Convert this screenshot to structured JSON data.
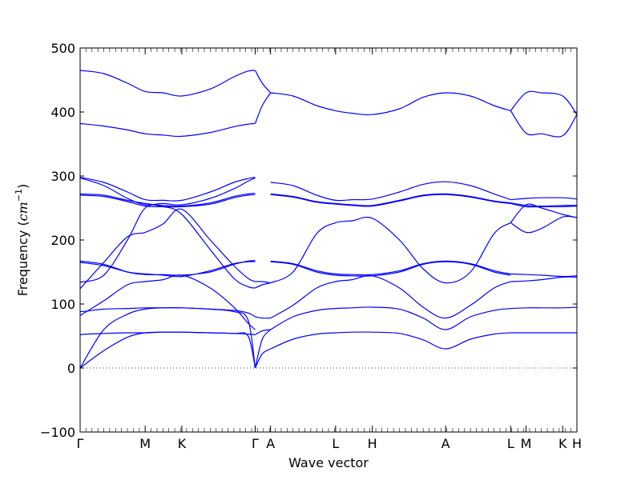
{
  "chart_data": {
    "type": "line",
    "xlabel": "Wave vector",
    "ylabel": "Frequency ($cm^{-1}$)",
    "ylabel_parts": {
      "main": "Frequency (",
      "var": "cm",
      "exp": "−1",
      "close": ")"
    },
    "ylim": [
      -100,
      500
    ],
    "yticks": [
      -100,
      0,
      100,
      200,
      300,
      400,
      500
    ],
    "xlim": [
      0,
      21
    ],
    "xticks": [
      {
        "pos": 0,
        "label": "Γ"
      },
      {
        "pos": 2.75,
        "label": "M"
      },
      {
        "pos": 4.3,
        "label": "K"
      },
      {
        "pos": 7.4,
        "label": "Γ"
      },
      {
        "pos": 8.05,
        "label": "A"
      },
      {
        "pos": 10.8,
        "label": "L"
      },
      {
        "pos": 12.35,
        "label": "H"
      },
      {
        "pos": 15.45,
        "label": "A"
      },
      {
        "pos": 18.2,
        "label": "L"
      },
      {
        "pos": 18.85,
        "label": "M"
      },
      {
        "pos": 20.4,
        "label": "K"
      },
      {
        "pos": 21,
        "label": "H"
      }
    ],
    "zero_line": {
      "value": 0,
      "style": "dotted"
    },
    "grid": false,
    "series": [
      {
        "x": [
          0,
          1,
          2,
          2.75,
          3.5,
          4.3,
          5.5,
          6.5,
          7.1,
          7.4
        ],
        "y": [
          0,
          27,
          48,
          55,
          56,
          56,
          55,
          54,
          50,
          0
        ]
      },
      {
        "x": [
          0,
          1,
          2,
          2.75,
          3.5,
          4.3,
          5.5,
          6.5,
          7.1,
          7.4
        ],
        "y": [
          0,
          60,
          84,
          92,
          94,
          94,
          92,
          88,
          75,
          0
        ]
      },
      {
        "x": [
          0,
          0.3,
          1,
          2,
          2.75,
          3.5,
          4.3,
          5.5,
          6.5,
          7.1,
          7.4
        ],
        "y": [
          52,
          53,
          54,
          55,
          55,
          56,
          56,
          55,
          54,
          53,
          52
        ]
      },
      {
        "x": [
          0,
          0.3,
          1,
          2,
          2.75,
          3.5,
          4.3,
          5.5,
          6.5,
          7.1,
          7.4
        ],
        "y": [
          88,
          89,
          92,
          93,
          94,
          94,
          94,
          92,
          90,
          86,
          80
        ]
      },
      {
        "x": [
          0,
          1,
          2,
          2.75,
          3.5,
          4.3,
          5.5,
          6.5,
          7.1,
          7.4
        ],
        "y": [
          82,
          105,
          130,
          135,
          138,
          145,
          125,
          95,
          70,
          60
        ]
      },
      {
        "x": [
          0,
          1,
          2,
          2.75,
          3.5,
          4.3,
          5.5,
          6.5,
          7.1,
          7.4
        ],
        "y": [
          124,
          165,
          205,
          212,
          225,
          248,
          200,
          160,
          140,
          135
        ]
      },
      {
        "x": [
          0,
          1,
          2,
          2.75,
          3.5,
          4.3,
          5.5,
          6.5,
          7.1,
          7.4
        ],
        "y": [
          134,
          145,
          200,
          250,
          252,
          240,
          185,
          140,
          127,
          125
        ]
      },
      {
        "x": [
          0,
          1,
          2,
          2.75,
          3.5,
          4.3,
          5.5,
          6.5,
          7.1,
          7.4
        ],
        "y": [
          167,
          162,
          150,
          146,
          146,
          145,
          150,
          162,
          167,
          168
        ]
      },
      {
        "x": [
          0,
          1,
          2,
          2.75,
          3.5,
          4.3,
          5.5,
          6.5,
          7.1,
          7.4
        ],
        "y": [
          165,
          160,
          150,
          147,
          145,
          143,
          152,
          163,
          166,
          166
        ]
      },
      {
        "x": [
          0,
          1,
          2,
          2.75,
          3.5,
          4.3,
          5.5,
          6.5,
          7.1,
          7.4
        ],
        "y": [
          298,
          290,
          275,
          263,
          262,
          262,
          275,
          290,
          296,
          298
        ]
      },
      {
        "x": [
          0,
          1,
          2,
          2.75,
          3.5,
          4.3,
          5.5,
          6.5,
          7.1,
          7.4
        ],
        "y": [
          297,
          285,
          265,
          255,
          257,
          255,
          265,
          280,
          292,
          297
        ]
      },
      {
        "x": [
          0,
          1,
          2,
          2.75,
          3.5,
          4.3,
          5.5,
          6.5,
          7.1,
          7.4
        ],
        "y": [
          272,
          270,
          262,
          257,
          254,
          253,
          258,
          268,
          272,
          273
        ]
      },
      {
        "x": [
          0,
          1,
          2,
          2.75,
          3.5,
          4.3,
          5.5,
          6.5,
          7.1,
          7.4
        ],
        "y": [
          270,
          268,
          260,
          253,
          252,
          252,
          256,
          266,
          270,
          271
        ]
      },
      {
        "x": [
          0,
          1,
          2,
          2.75,
          3.5,
          4.3,
          5.5,
          6.5,
          7.1,
          7.4
        ],
        "y": [
          382,
          378,
          372,
          366,
          364,
          362,
          368,
          377,
          381,
          382
        ]
      },
      {
        "x": [
          0,
          1,
          2,
          2.75,
          3.5,
          4.3,
          5.5,
          6.5,
          7.1,
          7.4
        ],
        "y": [
          465,
          460,
          445,
          432,
          430,
          425,
          436,
          455,
          464,
          465
        ]
      },
      {
        "x": [
          7.4,
          7.7,
          8.05
        ],
        "y": [
          0,
          22,
          30
        ]
      },
      {
        "x": [
          7.4,
          7.7,
          8.05
        ],
        "y": [
          0,
          45,
          60
        ]
      },
      {
        "x": [
          7.4,
          7.7,
          8.05
        ],
        "y": [
          52,
          58,
          60
        ]
      },
      {
        "x": [
          7.4,
          7.7,
          8.05
        ],
        "y": [
          80,
          78,
          78
        ]
      },
      {
        "x": [
          7.4,
          7.7,
          8.05
        ],
        "y": [
          125,
          130,
          133
        ]
      },
      {
        "x": [
          7.4,
          7.7,
          8.05
        ],
        "y": [
          135,
          135,
          133
        ]
      },
      {
        "x": [
          7.4,
          7.7,
          8.05
        ],
        "y": [
          382,
          410,
          430
        ]
      },
      {
        "x": [
          7.4,
          7.7,
          8.05
        ],
        "y": [
          465,
          445,
          430
        ]
      },
      {
        "x": [
          8.05,
          9,
          10,
          10.8,
          11.5,
          12.35,
          13.5,
          14.5,
          15.45,
          16.5,
          17.5,
          18.2
        ],
        "y": [
          30,
          45,
          53,
          55,
          56,
          56,
          54,
          44,
          30,
          45,
          53,
          55
        ]
      },
      {
        "x": [
          8.05,
          9,
          10,
          10.8,
          11.5,
          12.35,
          13.5,
          14.5,
          15.45,
          16.5,
          17.5,
          18.2
        ],
        "y": [
          60,
          80,
          90,
          93,
          94,
          95,
          92,
          78,
          60,
          80,
          90,
          93
        ]
      },
      {
        "x": [
          8.05,
          9,
          10,
          10.8,
          11.5,
          12.35,
          13.5,
          14.5,
          15.45,
          16.5,
          17.5,
          18.2
        ],
        "y": [
          78,
          98,
          125,
          135,
          138,
          144,
          125,
          95,
          78,
          98,
          125,
          135
        ]
      },
      {
        "x": [
          8.05,
          9,
          10,
          10.8,
          11.5,
          12.35,
          13.5,
          14.5,
          15.45,
          16.5,
          17.5,
          18.2
        ],
        "y": [
          133,
          150,
          210,
          227,
          230,
          234,
          200,
          155,
          133,
          150,
          210,
          227
        ]
      },
      {
        "x": [
          8.05,
          9,
          10,
          10.8,
          11.5,
          12.35,
          13.5,
          14.5,
          15.45,
          16.5,
          17.5,
          18.2
        ],
        "y": [
          167,
          163,
          152,
          147,
          146,
          146,
          152,
          163,
          167,
          163,
          152,
          147
        ]
      },
      {
        "x": [
          8.05,
          9,
          10,
          10.8,
          11.5,
          12.35,
          13.5,
          14.5,
          15.45,
          16.5,
          17.5,
          18.2
        ],
        "y": [
          166,
          162,
          150,
          145,
          144,
          144,
          150,
          162,
          166,
          162,
          150,
          145
        ]
      },
      {
        "x": [
          8.05,
          9,
          10,
          10.8,
          11.5,
          12.35,
          13.5,
          14.5,
          15.45,
          16.5,
          17.5,
          18.2
        ],
        "y": [
          290,
          285,
          270,
          262,
          263,
          264,
          275,
          287,
          291,
          285,
          272,
          263
        ]
      },
      {
        "x": [
          8.05,
          9,
          10,
          10.8,
          11.5,
          12.35,
          13.5,
          14.5,
          15.45,
          16.5,
          17.5,
          18.2
        ],
        "y": [
          272,
          268,
          260,
          257,
          255,
          254,
          262,
          270,
          272,
          268,
          261,
          258
        ]
      },
      {
        "x": [
          8.05,
          9,
          10,
          10.8,
          11.5,
          12.35,
          13.5,
          14.5,
          15.45,
          16.5,
          17.5,
          18.2
        ],
        "y": [
          271,
          267,
          259,
          256,
          254,
          253,
          261,
          269,
          271,
          267,
          260,
          257
        ]
      },
      {
        "x": [
          8.05,
          9,
          10,
          10.8,
          11.5,
          12.35,
          13.5,
          14.5,
          15.45,
          16.5,
          17.5,
          18.2
        ],
        "y": [
          430,
          425,
          410,
          402,
          398,
          396,
          405,
          423,
          430,
          425,
          410,
          402
        ]
      },
      {
        "x": [
          18.2,
          18.85,
          19.5,
          20.4,
          21
        ],
        "y": [
          55,
          55,
          55,
          55,
          55
        ]
      },
      {
        "x": [
          18.2,
          18.85,
          19.5,
          20.4,
          21
        ],
        "y": [
          93,
          94,
          94,
          94,
          95
        ]
      },
      {
        "x": [
          18.2,
          18.85,
          19.5,
          20.4,
          21
        ],
        "y": [
          135,
          136,
          138,
          142,
          142
        ]
      },
      {
        "x": [
          18.2,
          18.85,
          19.5,
          20.4,
          21
        ],
        "y": [
          147,
          146,
          145,
          143,
          144
        ]
      },
      {
        "x": [
          18.2,
          18.85,
          19.5,
          20.4,
          21
        ],
        "y": [
          227,
          212,
          218,
          236,
          235
        ]
      },
      {
        "x": [
          18.2,
          18.85,
          19.5,
          20.4,
          21
        ],
        "y": [
          227,
          255,
          250,
          240,
          235
        ]
      },
      {
        "x": [
          18.2,
          18.85,
          19.5,
          20.4,
          21
        ],
        "y": [
          263,
          265,
          266,
          266,
          264
        ]
      },
      {
        "x": [
          18.2,
          18.85,
          19.5,
          20.4,
          21
        ],
        "y": [
          258,
          254,
          253,
          254,
          254
        ]
      },
      {
        "x": [
          18.2,
          18.85,
          19.5,
          20.4,
          21
        ],
        "y": [
          257,
          252,
          252,
          252,
          253
        ]
      },
      {
        "x": [
          18.2,
          18.85,
          19.5,
          20.4,
          21
        ],
        "y": [
          402,
          430,
          430,
          425,
          396
        ]
      },
      {
        "x": [
          18.2,
          18.85,
          19.5,
          20.4,
          21
        ],
        "y": [
          402,
          367,
          366,
          363,
          396
        ]
      }
    ]
  }
}
